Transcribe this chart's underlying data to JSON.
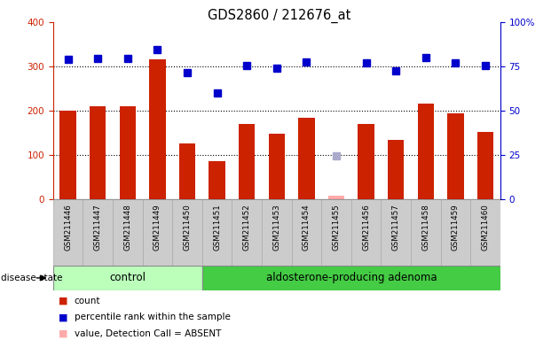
{
  "title": "GDS2860 / 212676_at",
  "samples": [
    "GSM211446",
    "GSM211447",
    "GSM211448",
    "GSM211449",
    "GSM211450",
    "GSM211451",
    "GSM211452",
    "GSM211453",
    "GSM211454",
    "GSM211455",
    "GSM211456",
    "GSM211457",
    "GSM211458",
    "GSM211459",
    "GSM211460"
  ],
  "count_values": [
    200,
    210,
    210,
    315,
    125,
    85,
    170,
    148,
    183,
    8,
    170,
    133,
    215,
    193,
    152
  ],
  "count_absent": [
    false,
    false,
    false,
    false,
    false,
    false,
    false,
    false,
    false,
    true,
    false,
    false,
    false,
    false,
    false
  ],
  "percentile_values": [
    315,
    317,
    317,
    337,
    285,
    240,
    302,
    295,
    310,
    97,
    307,
    290,
    320,
    308,
    302
  ],
  "percentile_absent": [
    false,
    false,
    false,
    false,
    false,
    false,
    false,
    false,
    false,
    true,
    false,
    false,
    false,
    false,
    false
  ],
  "control_count": 5,
  "total_count": 15,
  "bar_color": "#cc2200",
  "bar_absent_color": "#ffaaaa",
  "dot_color": "#0000cc",
  "dot_absent_color": "#aaaacc",
  "control_bg": "#bbffbb",
  "adenoma_bg": "#44cc44",
  "sample_box_bg": "#cccccc",
  "sample_box_border": "#aaaaaa",
  "group_label_control": "control",
  "group_label_adenoma": "aldosterone-producing adenoma",
  "disease_state_label": "disease state",
  "ylim_left": [
    0,
    400
  ],
  "ylim_right": [
    0,
    100
  ],
  "yticks_left": [
    0,
    100,
    200,
    300,
    400
  ],
  "yticks_right": [
    0,
    25,
    50,
    75,
    100
  ],
  "ytick_labels_right": [
    "0",
    "25",
    "50",
    "75",
    "100%"
  ],
  "grid_values": [
    100,
    200,
    300
  ],
  "left_axis_color": "#cc2200",
  "right_axis_color": "#0000cc",
  "bg_color": "#ffffff"
}
